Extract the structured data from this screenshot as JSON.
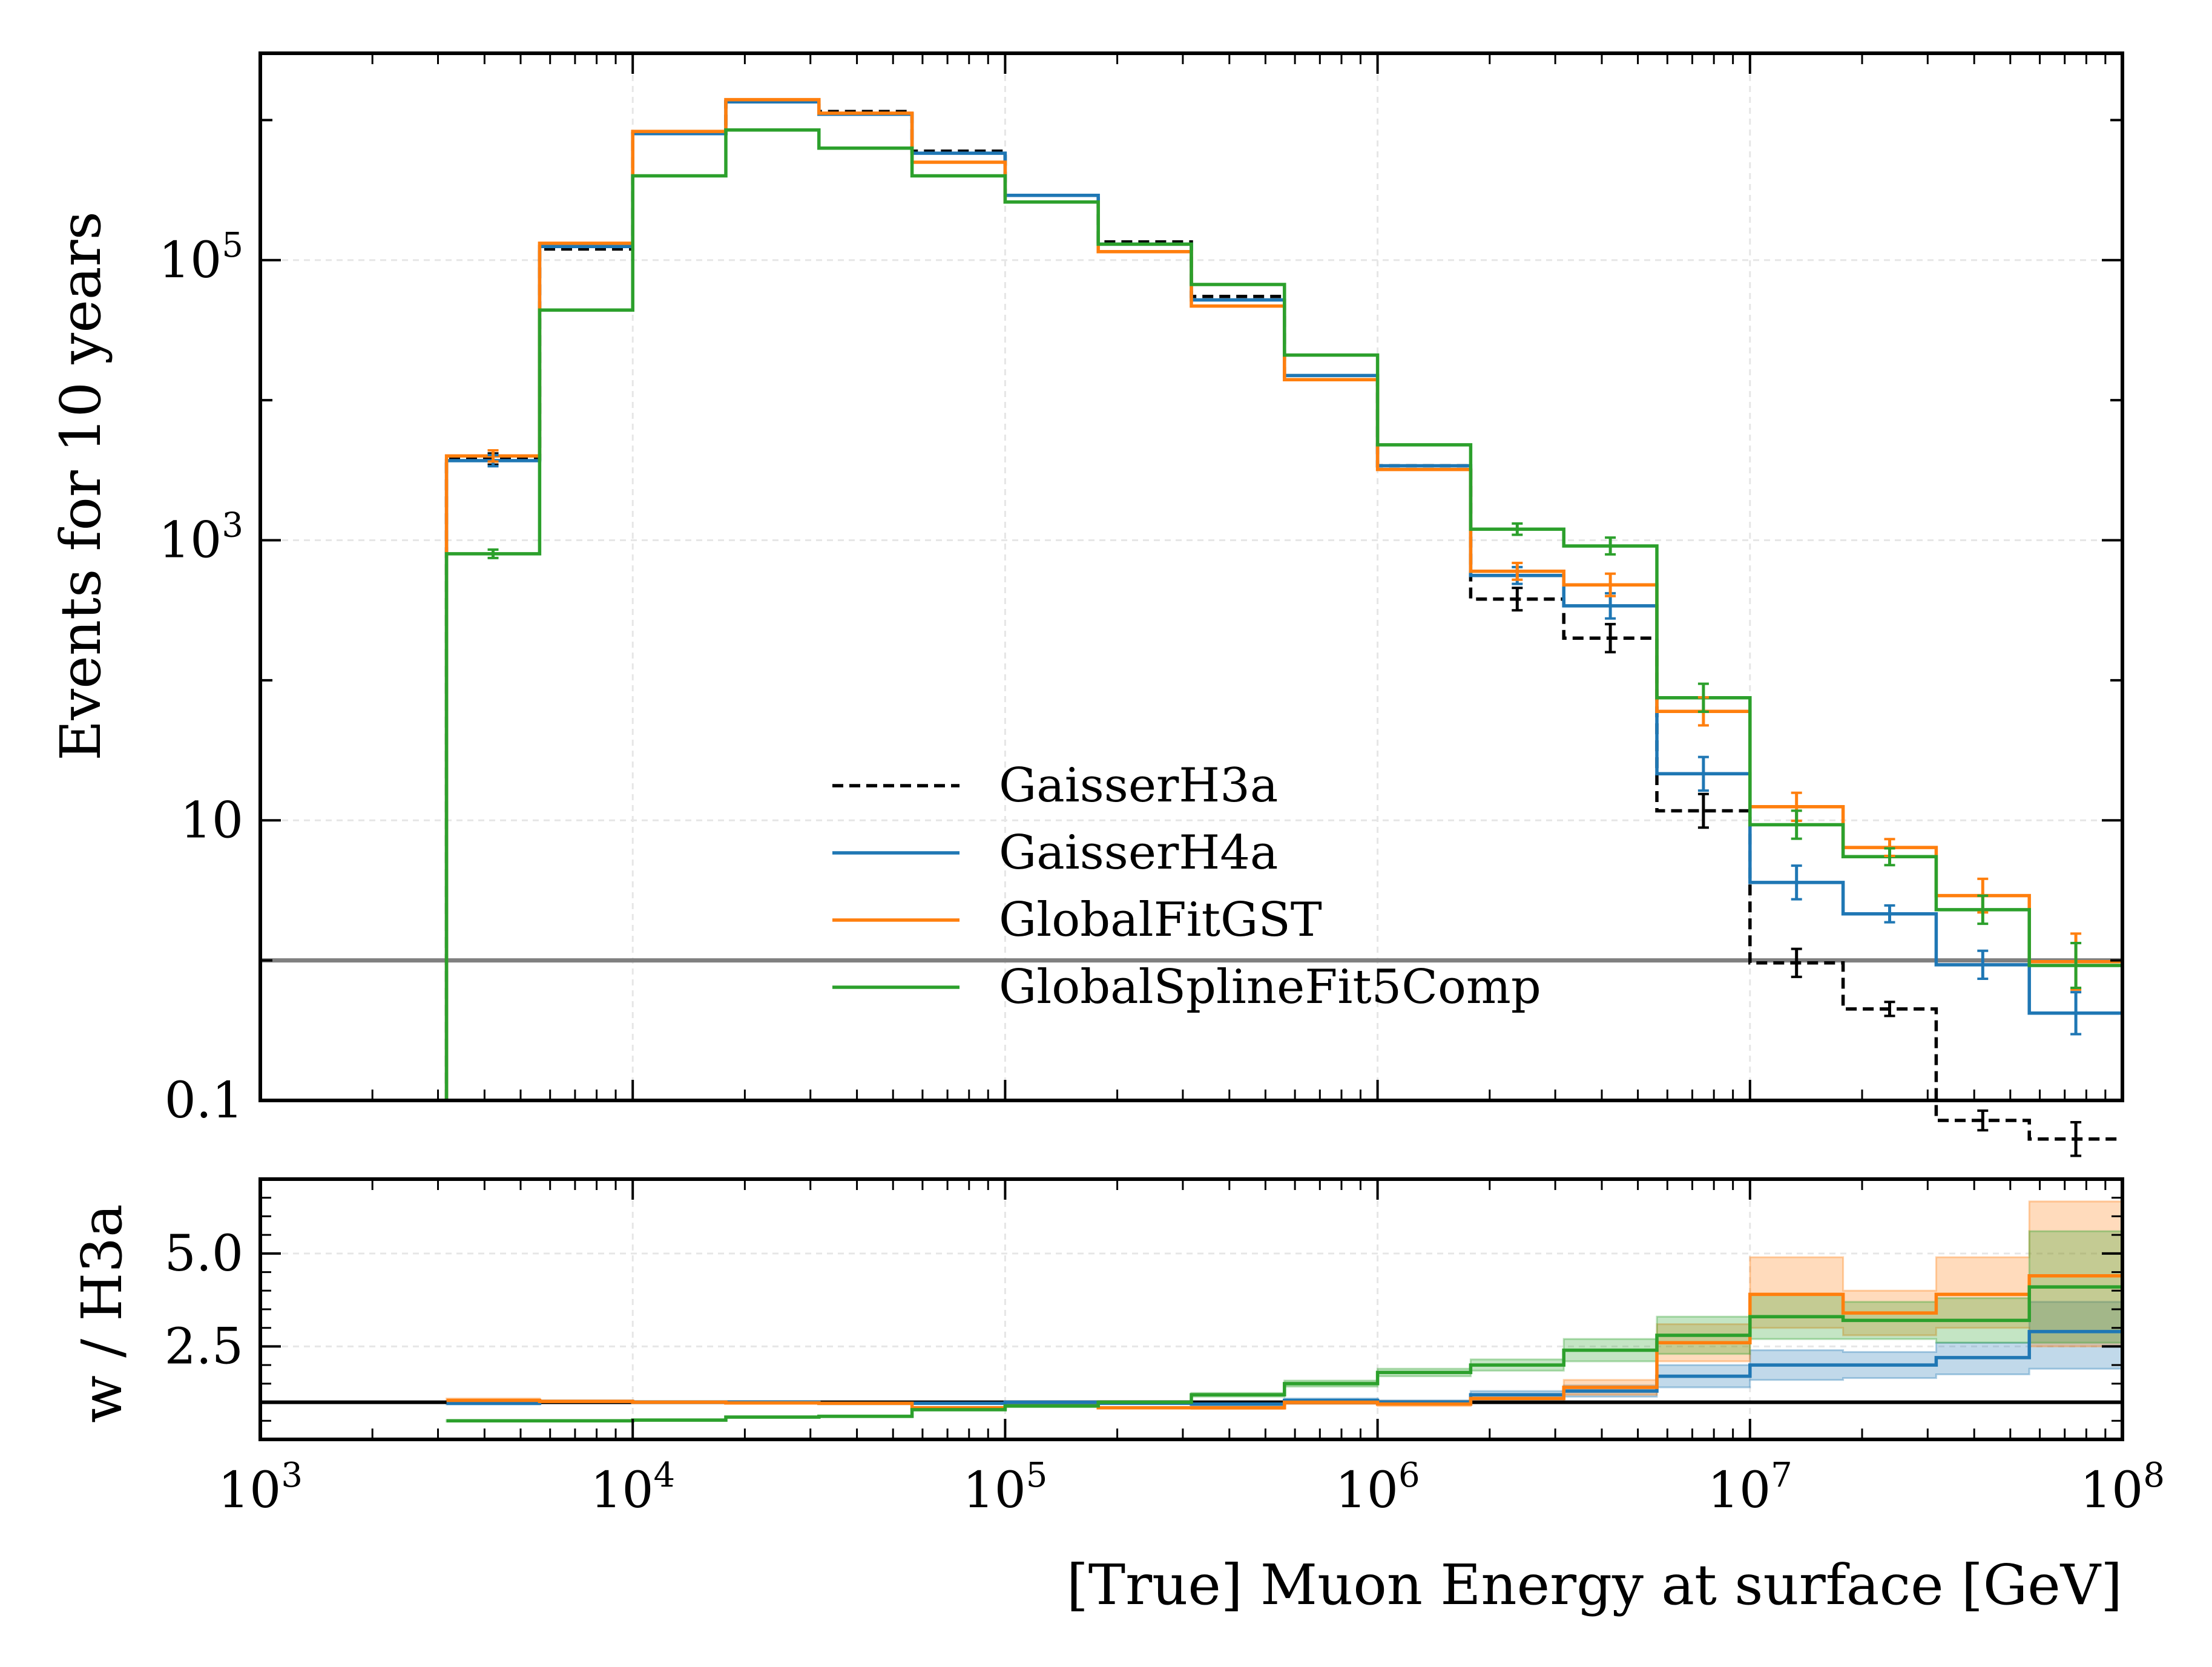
{
  "chart_data": [
    {
      "type": "line",
      "step": true,
      "xlabel": "",
      "ylabel": "Events for 10 years",
      "xscale": "log",
      "yscale": "log",
      "xlim": [
        1000,
        100000000
      ],
      "ylim": [
        0.1,
        3000000
      ],
      "yticks": [
        {
          "value": 0.1,
          "label": "0.1"
        },
        {
          "value": 10,
          "label": "10"
        },
        {
          "value": 1000,
          "label": "10",
          "exp": "3"
        },
        {
          "value": 100000,
          "label": "10",
          "exp": "5"
        }
      ],
      "grid": true,
      "legend_position": "lower-center",
      "reference_line": 1,
      "bin_edges": [
        3162,
        5623,
        10000,
        17783,
        31623,
        56234,
        100000,
        177828,
        316228,
        562341,
        1000000,
        1778279,
        3162278,
        5623413,
        10000000,
        17782794,
        31622777,
        56234133,
        100000000
      ],
      "series": [
        {
          "name": "GaisserH3a",
          "color": "#000000",
          "dash": true,
          "values": [
            3800,
            120000,
            800000,
            1350000,
            1150000,
            600000,
            290000,
            135000,
            55000,
            14000,
            3400,
            380,
            200,
            11.7,
            0.96,
            0.45,
            0.072,
            0.053
          ]
        },
        {
          "name": "GaisserH4a",
          "color": "#1f77b4",
          "dash": false,
          "values": [
            3700,
            125000,
            800000,
            1350000,
            1100000,
            580000,
            290000,
            130000,
            52000,
            15000,
            3400,
            560,
            340,
            21.5,
            3.6,
            2.15,
            0.93,
            0.42
          ]
        },
        {
          "name": "GlobalFitGST",
          "color": "#ff7f0e",
          "dash": false,
          "values": [
            4000,
            132000,
            830000,
            1400000,
            1120000,
            500000,
            260000,
            115000,
            47000,
            14000,
            3200,
            600,
            480,
            60,
            12.5,
            6.4,
            2.9,
            0.98
          ]
        },
        {
          "name": "GlobalSplineFit5Comp",
          "color": "#2ca02c",
          "dash": false,
          "values": [
            800,
            44000,
            400000,
            850000,
            630000,
            400000,
            260000,
            130000,
            67000,
            21000,
            4800,
            1200,
            910,
            75,
            9.3,
            5.5,
            2.3,
            0.92
          ]
        }
      ],
      "error_bars": [
        {
          "series": "GaisserH3a",
          "x": [
            4217,
            2371374,
            4216965,
            7498942,
            13335214,
            23713737,
            42169650,
            74989421
          ],
          "y": [
            3800,
            380,
            200,
            11.7,
            0.96,
            0.45,
            0.072,
            0.053
          ],
          "err": [
            0.04,
            0.08,
            0.1,
            0.12,
            0.1,
            0.05,
            0.07,
            0.12
          ]
        },
        {
          "series": "GaisserH4a",
          "x": [
            4217,
            2371374,
            4216965,
            7498942,
            13335214,
            23713737,
            42169650,
            74989421
          ],
          "y": [
            3700,
            560,
            340,
            21.5,
            3.6,
            2.15,
            0.93,
            0.42
          ],
          "err": [
            0.04,
            0.06,
            0.09,
            0.12,
            0.12,
            0.06,
            0.1,
            0.15
          ]
        },
        {
          "series": "GlobalFitGST",
          "x": [
            4217,
            2371374,
            4216965,
            7498942,
            13335214,
            23713737,
            42169650,
            74989421
          ],
          "y": [
            4000,
            600,
            480,
            60,
            12.5,
            6.4,
            2.9,
            0.98
          ],
          "err": [
            0.04,
            0.06,
            0.08,
            0.1,
            0.1,
            0.06,
            0.12,
            0.2
          ]
        },
        {
          "series": "GlobalSplineFit5Comp",
          "x": [
            4217,
            2371374,
            4216965,
            7498942,
            13335214,
            23713737,
            42169650,
            74989421
          ],
          "y": [
            800,
            1200,
            910,
            75,
            9.3,
            5.5,
            2.3,
            0.92
          ],
          "err": [
            0.03,
            0.04,
            0.06,
            0.1,
            0.1,
            0.06,
            0.1,
            0.16
          ]
        }
      ]
    },
    {
      "type": "line",
      "step": true,
      "xlabel": "[True] Muon Energy at surface [GeV]",
      "ylabel": "w / H3a",
      "xscale": "log",
      "yscale": "linear",
      "xlim": [
        1000,
        100000000
      ],
      "ylim": [
        0,
        7
      ],
      "yticks": [
        {
          "value": 2.5,
          "label": "2.5"
        },
        {
          "value": 5.0,
          "label": "5.0"
        }
      ],
      "xticks": [
        {
          "value": 1000,
          "label": "10",
          "exp": "3"
        },
        {
          "value": 10000,
          "label": "10",
          "exp": "4"
        },
        {
          "value": 100000,
          "label": "10",
          "exp": "5"
        },
        {
          "value": 1000000,
          "label": "10",
          "exp": "6"
        },
        {
          "value": 10000000,
          "label": "10",
          "exp": "7"
        },
        {
          "value": 100000000,
          "label": "10",
          "exp": "8"
        }
      ],
      "grid": true,
      "reference_line": 1,
      "bin_edges": [
        3162,
        5623,
        10000,
        17783,
        31623,
        56234,
        100000,
        177828,
        316228,
        562341,
        1000000,
        1778279,
        3162278,
        5623413,
        10000000,
        17782794,
        31622777,
        56234133,
        100000000
      ],
      "series": [
        {
          "name": "GaisserH4a",
          "color": "#1f77b4",
          "values": [
            0.97,
            1.02,
            1.0,
            1.0,
            0.97,
            0.97,
            1.0,
            0.97,
            0.95,
            1.05,
            1.0,
            1.2,
            1.3,
            1.7,
            2.0,
            2.0,
            2.2,
            2.9
          ],
          "band_low": [
            0.94,
            0.99,
            0.98,
            0.98,
            0.95,
            0.95,
            0.98,
            0.95,
            0.92,
            1.0,
            0.95,
            1.1,
            1.15,
            1.4,
            1.6,
            1.65,
            1.75,
            1.9
          ],
          "band_high": [
            1.0,
            1.05,
            1.02,
            1.02,
            0.99,
            0.99,
            1.02,
            0.99,
            0.98,
            1.1,
            1.05,
            1.3,
            1.45,
            2.0,
            2.4,
            2.35,
            2.6,
            3.7
          ]
        },
        {
          "name": "GlobalFitGST",
          "color": "#ff7f0e",
          "values": [
            1.05,
            1.02,
            1.0,
            0.98,
            0.97,
            0.85,
            0.9,
            0.85,
            0.85,
            1.0,
            0.95,
            1.1,
            1.4,
            2.6,
            3.9,
            3.4,
            3.9,
            4.4
          ],
          "band_low": [
            1.0,
            0.99,
            0.98,
            0.96,
            0.95,
            0.83,
            0.88,
            0.83,
            0.82,
            0.95,
            0.9,
            1.0,
            1.2,
            2.1,
            3.0,
            2.8,
            3.0,
            2.5
          ],
          "band_high": [
            1.1,
            1.05,
            1.02,
            1.0,
            0.99,
            0.87,
            0.92,
            0.87,
            0.88,
            1.05,
            1.0,
            1.2,
            1.6,
            3.1,
            4.9,
            4.0,
            4.9,
            6.4
          ]
        },
        {
          "name": "GlobalSplineFit5Comp",
          "color": "#2ca02c",
          "values": [
            0.5,
            0.5,
            0.52,
            0.6,
            0.62,
            0.8,
            0.9,
            1.0,
            1.2,
            1.5,
            1.8,
            2.0,
            2.4,
            2.8,
            3.3,
            3.2,
            3.2,
            4.1
          ],
          "band_low": [
            0.48,
            0.48,
            0.5,
            0.58,
            0.6,
            0.78,
            0.87,
            0.97,
            1.15,
            1.42,
            1.7,
            1.85,
            2.1,
            2.3,
            2.7,
            2.7,
            2.6,
            2.6
          ],
          "band_high": [
            0.52,
            0.52,
            0.54,
            0.62,
            0.64,
            0.82,
            0.93,
            1.03,
            1.25,
            1.58,
            1.9,
            2.15,
            2.7,
            3.3,
            3.9,
            3.7,
            3.8,
            5.6
          ]
        }
      ]
    }
  ]
}
